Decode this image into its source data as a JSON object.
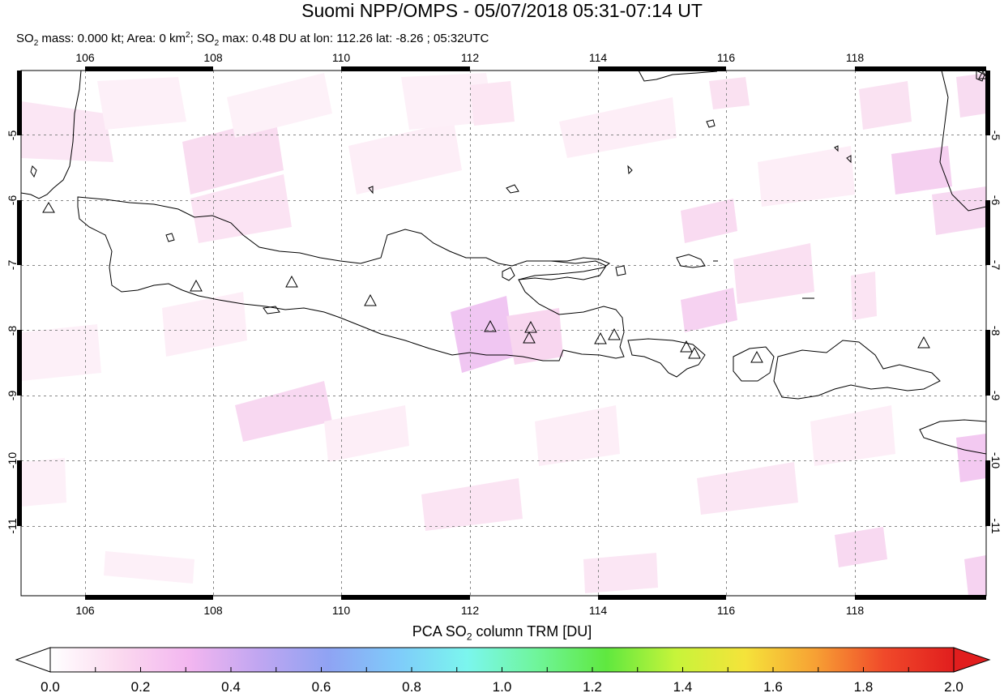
{
  "title": "Suomi NPP/OMPS - 05/07/2018 05:31-07:14 UT",
  "subtitle": {
    "so2": "SO",
    "sub2": "2",
    "mass_text": " mass: 0.000 kt; Area: 0 km",
    "sup2": "2",
    "sep": "; SO",
    "sub2b": "2",
    "max_text": " max: 0.48 DU at lon: 112.26 lat: -8.26 ; 05:32UTC"
  },
  "colorbar": {
    "title_prefix": "PCA SO",
    "title_sub": "2",
    "title_suffix": " column TRM [DU]",
    "ticks": [
      "0.0",
      "0.2",
      "0.4",
      "0.6",
      "0.8",
      "1.0",
      "1.2",
      "1.4",
      "1.6",
      "1.8",
      "2.0"
    ],
    "stops": [
      "#ffffff",
      "#fbd9ef",
      "#f3b6f0",
      "#c0a6f1",
      "#8fa3f3",
      "#7fcbfa",
      "#7bf6ee",
      "#6ff59a",
      "#5fe83f",
      "#c7f43a",
      "#f5e33a",
      "#f7a134",
      "#f0492a",
      "#e11e1e"
    ]
  },
  "map": {
    "lon_ticks": [
      "106",
      "108",
      "110",
      "112",
      "114",
      "116",
      "118"
    ],
    "lat_ticks": [
      "-5",
      "-6",
      "-7",
      "-8",
      "-9",
      "-10",
      "-11"
    ],
    "volcano_icon": "triangle-icon",
    "volcano_count": 14,
    "max_lon": 112.26,
    "max_lat": -8.26,
    "max_du": 0.48
  }
}
